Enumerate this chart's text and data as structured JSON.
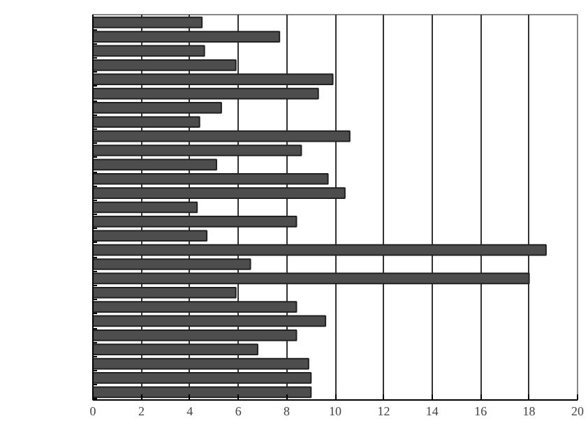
{
  "chart_data": {
    "type": "bar",
    "orientation": "horizontal",
    "categories": [
      null,
      null,
      null,
      null,
      null,
      null,
      null,
      null,
      null,
      null,
      null,
      null,
      null,
      null,
      null,
      null,
      null,
      null,
      null,
      null,
      null,
      null,
      null,
      null,
      null,
      null,
      null
    ],
    "values": [
      4.5,
      7.7,
      4.6,
      5.9,
      9.9,
      9.3,
      5.3,
      4.4,
      10.6,
      8.6,
      5.1,
      9.7,
      10.4,
      4.3,
      8.4,
      4.7,
      18.7,
      6.5,
      18.0,
      5.9,
      8.4,
      9.6,
      8.4,
      6.8,
      8.9,
      9.0,
      9.0
    ],
    "color": "#4d4d4d",
    "xlim": [
      0,
      20
    ],
    "xticks": [
      0,
      2,
      4,
      6,
      8,
      10,
      12,
      14,
      16,
      18,
      20
    ],
    "grid": "x",
    "tick_labels": "x"
  }
}
